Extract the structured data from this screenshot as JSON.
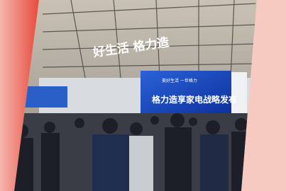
{
  "header": {
    "sign": "好生活 格力造"
  },
  "screen": {
    "tagline": "美好生活 一世格力",
    "headline": "格力造享家电战略发布"
  }
}
